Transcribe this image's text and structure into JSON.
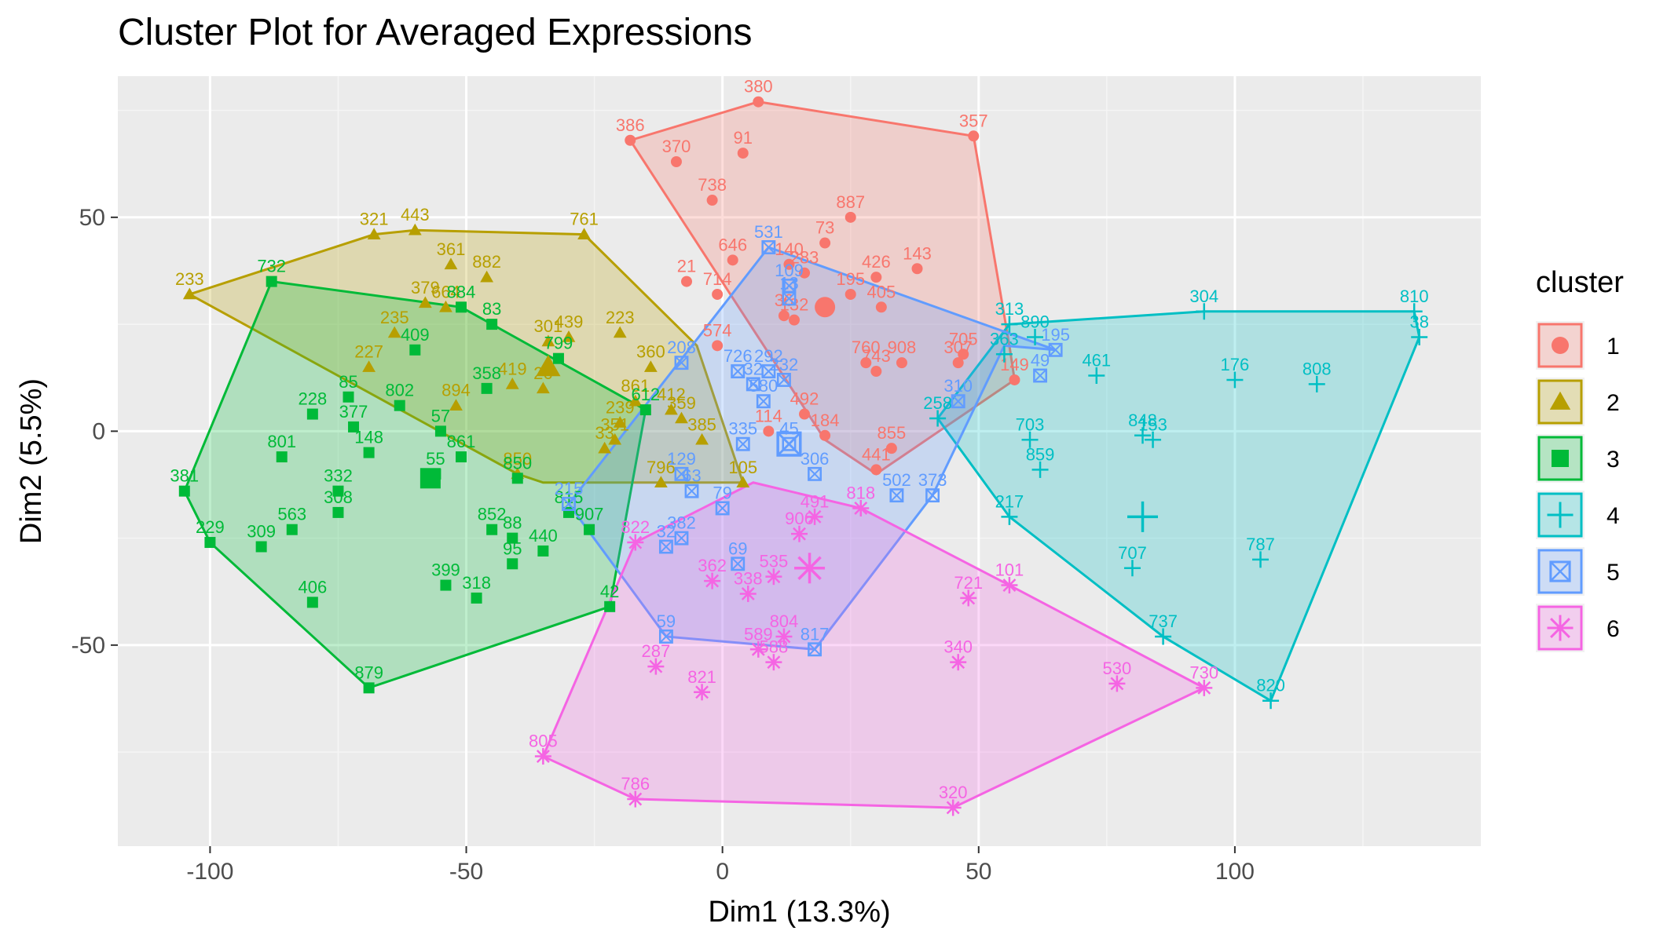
{
  "chart_data": {
    "type": "scatter",
    "title": "Cluster Plot for Averaged Expressions",
    "xlabel": "Dim1 (13.3%)",
    "ylabel": "Dim2 (5.5%)",
    "xlim": [
      -118,
      148
    ],
    "ylim": [
      -97,
      83
    ],
    "xticks": [
      -100,
      -50,
      0,
      50,
      100
    ],
    "yticks": [
      -50,
      0,
      50
    ],
    "xtick_labels": [
      "-100",
      "-50",
      "0",
      "50",
      "100"
    ],
    "ytick_labels": [
      "-50",
      "0",
      "50"
    ],
    "grid": true,
    "legend_title": "cluster",
    "legend_position": "right",
    "clusters": [
      {
        "name": "1",
        "color": "#F8766D",
        "shape": "circle",
        "centroid": [
          20,
          29
        ],
        "hull": [
          [
            -18,
            68
          ],
          [
            7,
            77
          ],
          [
            49,
            69
          ],
          [
            56,
            20
          ],
          [
            57,
            12
          ],
          [
            30,
            -10
          ],
          [
            20,
            -2
          ]
        ],
        "points": [
          {
            "label": "380",
            "x": 7,
            "y": 77
          },
          {
            "label": "386",
            "x": -18,
            "y": 68
          },
          {
            "label": "357",
            "x": 49,
            "y": 69
          },
          {
            "label": "370",
            "x": -9,
            "y": 63
          },
          {
            "label": "91",
            "x": 4,
            "y": 65
          },
          {
            "label": "738",
            "x": -2,
            "y": 54
          },
          {
            "label": "887",
            "x": 25,
            "y": 50
          },
          {
            "label": "73",
            "x": 20,
            "y": 44
          },
          {
            "label": "646",
            "x": 2,
            "y": 40
          },
          {
            "label": "140",
            "x": 13,
            "y": 39
          },
          {
            "label": "283",
            "x": 16,
            "y": 37
          },
          {
            "label": "426",
            "x": 30,
            "y": 36
          },
          {
            "label": "143",
            "x": 38,
            "y": 38
          },
          {
            "label": "21",
            "x": -7,
            "y": 35
          },
          {
            "label": "714",
            "x": -1,
            "y": 32
          },
          {
            "label": "195",
            "x": 25,
            "y": 32
          },
          {
            "label": "405",
            "x": 31,
            "y": 29
          },
          {
            "label": "36",
            "x": 12,
            "y": 27
          },
          {
            "label": "132",
            "x": 14,
            "y": 26
          },
          {
            "label": "574",
            "x": -1,
            "y": 20
          },
          {
            "label": "908",
            "x": 35,
            "y": 16
          },
          {
            "label": "760",
            "x": 28,
            "y": 16
          },
          {
            "label": "743",
            "x": 30,
            "y": 14
          },
          {
            "label": "705",
            "x": 47,
            "y": 18
          },
          {
            "label": "307",
            "x": 46,
            "y": 16
          },
          {
            "label": "492",
            "x": 16,
            "y": 4
          },
          {
            "label": "114",
            "x": 9,
            "y": 0
          },
          {
            "label": "855",
            "x": 33,
            "y": -4
          },
          {
            "label": "441",
            "x": 30,
            "y": -9
          },
          {
            "label": "149",
            "x": 57,
            "y": 12
          },
          {
            "label": "184",
            "x": 20,
            "y": -1
          }
        ]
      },
      {
        "name": "2",
        "color": "#B79F00",
        "shape": "triangle",
        "centroid": [
          -34,
          15
        ],
        "hull": [
          [
            -104,
            32
          ],
          [
            -68,
            46
          ],
          [
            -60,
            47
          ],
          [
            -27,
            46
          ],
          [
            -5,
            20
          ],
          [
            4,
            -12
          ],
          [
            -35,
            -12
          ],
          [
            -40,
            -10
          ]
        ],
        "points": [
          {
            "label": "233",
            "x": -104,
            "y": 32
          },
          {
            "label": "321",
            "x": -68,
            "y": 46
          },
          {
            "label": "443",
            "x": -60,
            "y": 47
          },
          {
            "label": "761",
            "x": -27,
            "y": 46
          },
          {
            "label": "361",
            "x": -53,
            "y": 39
          },
          {
            "label": "882",
            "x": -46,
            "y": 36
          },
          {
            "label": "379",
            "x": -58,
            "y": 30
          },
          {
            "label": "664",
            "x": -54,
            "y": 29
          },
          {
            "label": "235",
            "x": -64,
            "y": 23
          },
          {
            "label": "223",
            "x": -20,
            "y": 23
          },
          {
            "label": "301",
            "x": -34,
            "y": 21
          },
          {
            "label": "439",
            "x": -30,
            "y": 22
          },
          {
            "label": "227",
            "x": -69,
            "y": 15
          },
          {
            "label": "360",
            "x": -14,
            "y": 15
          },
          {
            "label": "419",
            "x": -41,
            "y": 11
          },
          {
            "label": "26",
            "x": -35,
            "y": 10
          },
          {
            "label": "894",
            "x": -52,
            "y": 6
          },
          {
            "label": "412",
            "x": -10,
            "y": 5
          },
          {
            "label": "239",
            "x": -20,
            "y": 2
          },
          {
            "label": "359",
            "x": -8,
            "y": 3
          },
          {
            "label": "351",
            "x": -21,
            "y": -2
          },
          {
            "label": "385",
            "x": -4,
            "y": -2
          },
          {
            "label": "33",
            "x": -23,
            "y": -4
          },
          {
            "label": "796",
            "x": -12,
            "y": -12
          },
          {
            "label": "105",
            "x": 4,
            "y": -12
          },
          {
            "label": "850",
            "x": -40,
            "y": -10
          },
          {
            "label": "861",
            "x": -17,
            "y": 7
          }
        ]
      },
      {
        "name": "3",
        "color": "#00BA38",
        "shape": "square",
        "centroid": [
          -57,
          -11
        ],
        "hull": [
          [
            -88,
            35
          ],
          [
            -51,
            29
          ],
          [
            -45,
            25
          ],
          [
            -15,
            5
          ],
          [
            -22,
            -41
          ],
          [
            -69,
            -60
          ],
          [
            -100,
            -26
          ],
          [
            -105,
            -14
          ]
        ],
        "points": [
          {
            "label": "732",
            "x": -88,
            "y": 35
          },
          {
            "label": "884",
            "x": -51,
            "y": 29
          },
          {
            "label": "83",
            "x": -45,
            "y": 25
          },
          {
            "label": "409",
            "x": -60,
            "y": 19
          },
          {
            "label": "799",
            "x": -32,
            "y": 17
          },
          {
            "label": "85",
            "x": -73,
            "y": 8
          },
          {
            "label": "358",
            "x": -46,
            "y": 10
          },
          {
            "label": "228",
            "x": -80,
            "y": 4
          },
          {
            "label": "377",
            "x": -72,
            "y": 1
          },
          {
            "label": "802",
            "x": -63,
            "y": 6
          },
          {
            "label": "57",
            "x": -55,
            "y": 0
          },
          {
            "label": "148",
            "x": -69,
            "y": -5
          },
          {
            "label": "801",
            "x": -86,
            "y": -6
          },
          {
            "label": "861",
            "x": -51,
            "y": -6
          },
          {
            "label": "55",
            "x": -56,
            "y": -10
          },
          {
            "label": "850",
            "x": -40,
            "y": -11
          },
          {
            "label": "381",
            "x": -105,
            "y": -14
          },
          {
            "label": "332",
            "x": -75,
            "y": -14
          },
          {
            "label": "308",
            "x": -75,
            "y": -19
          },
          {
            "label": "563",
            "x": -84,
            "y": -23
          },
          {
            "label": "309",
            "x": -90,
            "y": -27
          },
          {
            "label": "229",
            "x": -100,
            "y": -26
          },
          {
            "label": "852",
            "x": -45,
            "y": -23
          },
          {
            "label": "88",
            "x": -41,
            "y": -25
          },
          {
            "label": "440",
            "x": -35,
            "y": -28
          },
          {
            "label": "95",
            "x": -41,
            "y": -31
          },
          {
            "label": "907",
            "x": -26,
            "y": -23
          },
          {
            "label": "399",
            "x": -54,
            "y": -36
          },
          {
            "label": "318",
            "x": -48,
            "y": -39
          },
          {
            "label": "406",
            "x": -80,
            "y": -40
          },
          {
            "label": "42",
            "x": -22,
            "y": -41
          },
          {
            "label": "879",
            "x": -69,
            "y": -60
          },
          {
            "label": "612",
            "x": -15,
            "y": 5
          },
          {
            "label": "815",
            "x": -30,
            "y": -19
          }
        ]
      },
      {
        "name": "4",
        "color": "#00BFC4",
        "shape": "plus",
        "centroid": [
          82,
          -20
        ],
        "hull": [
          [
            56,
            25
          ],
          [
            94,
            28
          ],
          [
            135,
            28
          ],
          [
            136,
            22
          ],
          [
            107,
            -63
          ],
          [
            86,
            -48
          ],
          [
            56,
            -20
          ],
          [
            42,
            3
          ]
        ],
        "points": [
          {
            "label": "304",
            "x": 94,
            "y": 28
          },
          {
            "label": "810",
            "x": 135,
            "y": 28
          },
          {
            "label": "38",
            "x": 136,
            "y": 22
          },
          {
            "label": "313",
            "x": 56,
            "y": 25
          },
          {
            "label": "890",
            "x": 61,
            "y": 22
          },
          {
            "label": "461",
            "x": 73,
            "y": 13
          },
          {
            "label": "176",
            "x": 100,
            "y": 12
          },
          {
            "label": "808",
            "x": 116,
            "y": 11
          },
          {
            "label": "363",
            "x": 55,
            "y": 18
          },
          {
            "label": "703",
            "x": 60,
            "y": -2
          },
          {
            "label": "848",
            "x": 82,
            "y": -1
          },
          {
            "label": "153",
            "x": 84,
            "y": -2
          },
          {
            "label": "859",
            "x": 62,
            "y": -9
          },
          {
            "label": "217",
            "x": 56,
            "y": -20
          },
          {
            "label": "707",
            "x": 80,
            "y": -32
          },
          {
            "label": "787",
            "x": 105,
            "y": -30
          },
          {
            "label": "737",
            "x": 86,
            "y": -48
          },
          {
            "label": "820",
            "x": 107,
            "y": -63
          },
          {
            "label": "258",
            "x": 42,
            "y": 3
          }
        ]
      },
      {
        "name": "5",
        "color": "#619CFF",
        "shape": "boxx",
        "centroid": [
          13,
          -3
        ],
        "hull": [
          [
            9,
            43
          ],
          [
            65,
            19
          ],
          [
            55,
            20
          ],
          [
            41,
            -15
          ],
          [
            18,
            -51
          ],
          [
            -11,
            -48
          ],
          [
            -30,
            -17
          ]
        ],
        "points": [
          {
            "label": "531",
            "x": 9,
            "y": 43
          },
          {
            "label": "109",
            "x": 13,
            "y": 34
          },
          {
            "label": "13",
            "x": 13,
            "y": 31
          },
          {
            "label": "208",
            "x": -8,
            "y": 16
          },
          {
            "label": "726",
            "x": 3,
            "y": 14
          },
          {
            "label": "292",
            "x": 9,
            "y": 14
          },
          {
            "label": "32",
            "x": 6,
            "y": 11
          },
          {
            "label": "232",
            "x": 12,
            "y": 12
          },
          {
            "label": "580",
            "x": 8,
            "y": 7
          },
          {
            "label": "310",
            "x": 46,
            "y": 7
          },
          {
            "label": "195",
            "x": 65,
            "y": 19
          },
          {
            "label": "49",
            "x": 62,
            "y": 13
          },
          {
            "label": "335",
            "x": 4,
            "y": -3
          },
          {
            "label": "45",
            "x": 13,
            "y": -3
          },
          {
            "label": "306",
            "x": 18,
            "y": -10
          },
          {
            "label": "129",
            "x": -8,
            "y": -10
          },
          {
            "label": "63",
            "x": -6,
            "y": -14
          },
          {
            "label": "79",
            "x": 0,
            "y": -18
          },
          {
            "label": "502",
            "x": 34,
            "y": -15
          },
          {
            "label": "373",
            "x": 41,
            "y": -15
          },
          {
            "label": "215",
            "x": -30,
            "y": -17
          },
          {
            "label": "382",
            "x": -8,
            "y": -25
          },
          {
            "label": "32",
            "x": -11,
            "y": -27
          },
          {
            "label": "69",
            "x": 3,
            "y": -31
          },
          {
            "label": "59",
            "x": -11,
            "y": -48
          },
          {
            "label": "817",
            "x": 18,
            "y": -51
          }
        ]
      },
      {
        "name": "6",
        "color": "#F564E3",
        "shape": "star",
        "centroid": [
          17,
          -32
        ],
        "hull": [
          [
            6,
            -12
          ],
          [
            -17,
            -26
          ],
          [
            -35,
            -76
          ],
          [
            -17,
            -86
          ],
          [
            45,
            -88
          ],
          [
            94,
            -60
          ],
          [
            56,
            -36
          ],
          [
            27,
            -18
          ]
        ],
        "points": [
          {
            "label": "491",
            "x": 18,
            "y": -20
          },
          {
            "label": "818",
            "x": 27,
            "y": -18
          },
          {
            "label": "906",
            "x": 15,
            "y": -24
          },
          {
            "label": "822",
            "x": -17,
            "y": -26
          },
          {
            "label": "362",
            "x": -2,
            "y": -35
          },
          {
            "label": "338",
            "x": 5,
            "y": -38
          },
          {
            "label": "535",
            "x": 10,
            "y": -34
          },
          {
            "label": "721",
            "x": 48,
            "y": -39
          },
          {
            "label": "101",
            "x": 56,
            "y": -36
          },
          {
            "label": "804",
            "x": 12,
            "y": -48
          },
          {
            "label": "589",
            "x": 7,
            "y": -51
          },
          {
            "label": "588",
            "x": 10,
            "y": -54
          },
          {
            "label": "340",
            "x": 46,
            "y": -54
          },
          {
            "label": "530",
            "x": 77,
            "y": -59
          },
          {
            "label": "730",
            "x": 94,
            "y": -60
          },
          {
            "label": "287",
            "x": -13,
            "y": -55
          },
          {
            "label": "821",
            "x": -4,
            "y": -61
          },
          {
            "label": "805",
            "x": -35,
            "y": -76
          },
          {
            "label": "786",
            "x": -17,
            "y": -86
          },
          {
            "label": "320",
            "x": 45,
            "y": -88
          }
        ]
      }
    ]
  }
}
